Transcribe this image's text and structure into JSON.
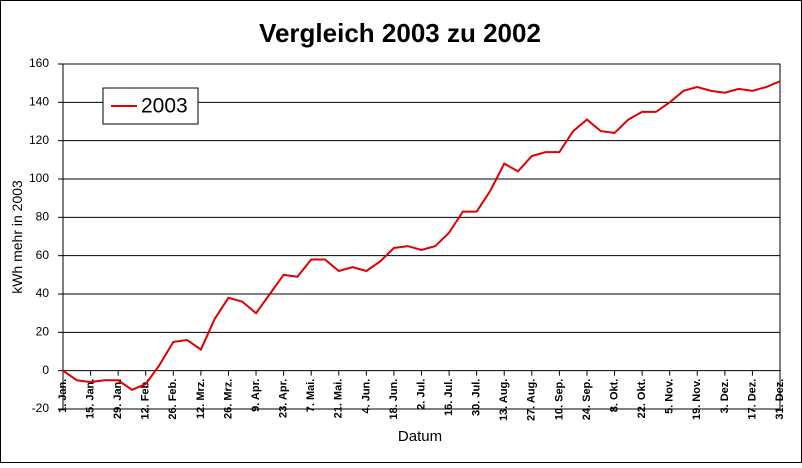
{
  "chart_data": {
    "type": "line",
    "title": "Vergleich 2003 zu 2002",
    "xlabel": "Datum",
    "ylabel": "kWh mehr in 2003",
    "categories": [
      "1. Jan.",
      null,
      "15. Jan.",
      null,
      "29. Jan.",
      null,
      "12. Feb.",
      null,
      "26. Feb.",
      null,
      "12. Mrz.",
      null,
      "26. Mrz.",
      null,
      "9. Apr.",
      null,
      "23. Apr.",
      null,
      "7. Mai.",
      null,
      "21. Mai.",
      null,
      "4. Jun.",
      null,
      "18. Jun.",
      null,
      "2. Jul.",
      null,
      "16. Jul.",
      null,
      "30. Jul.",
      null,
      "13. Aug.",
      null,
      "27. Aug.",
      null,
      "10. Sep.",
      null,
      "24. Sep.",
      null,
      "8. Okt.",
      null,
      "22. Okt.",
      null,
      "5. Nov.",
      null,
      "19. Nov.",
      null,
      "3. Dez.",
      null,
      "17. Dez.",
      null,
      "31. Dez."
    ],
    "series": [
      {
        "name": "2003",
        "color": "#e00000",
        "values": [
          0,
          -5,
          -6,
          -5,
          -5,
          -10,
          -7,
          3,
          15,
          16,
          11,
          27,
          38,
          36,
          30,
          40,
          50,
          49,
          58,
          58,
          52,
          54,
          52,
          57,
          64,
          65,
          63,
          65,
          72,
          83,
          83,
          94,
          108,
          104,
          112,
          114,
          114,
          125,
          131,
          125,
          124,
          131,
          135,
          135,
          140,
          146,
          148,
          146,
          145,
          147,
          146,
          148,
          151
        ]
      }
    ],
    "ylim": [
      -20,
      160
    ],
    "yticks": [
      -20,
      0,
      20,
      40,
      60,
      80,
      100,
      120,
      140,
      160
    ],
    "grid": true,
    "legend": "upper left"
  }
}
